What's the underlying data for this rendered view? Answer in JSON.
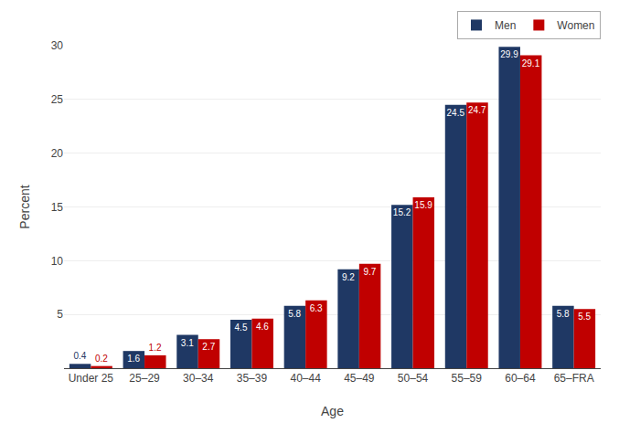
{
  "chart_data": {
    "type": "bar",
    "categories": [
      "Under 25",
      "25–29",
      "30–34",
      "35–39",
      "40–44",
      "45–49",
      "50–54",
      "55–59",
      "60–64",
      "65–FRA"
    ],
    "series": [
      {
        "name": "Men",
        "color": "#1f3864",
        "values": [
          0.4,
          1.6,
          3.1,
          4.5,
          5.8,
          9.2,
          15.2,
          24.5,
          29.9,
          5.8
        ]
      },
      {
        "name": "Women",
        "color": "#c00000",
        "values": [
          0.2,
          1.2,
          2.7,
          4.6,
          6.3,
          9.7,
          15.9,
          24.7,
          29.1,
          5.5
        ]
      }
    ],
    "xlabel": "Age",
    "ylabel": "Percent",
    "ylim": [
      0,
      30
    ],
    "yticks": [
      5,
      10,
      15,
      20,
      25,
      30
    ],
    "grid": true,
    "legend": "upper right",
    "data_labels": true
  }
}
